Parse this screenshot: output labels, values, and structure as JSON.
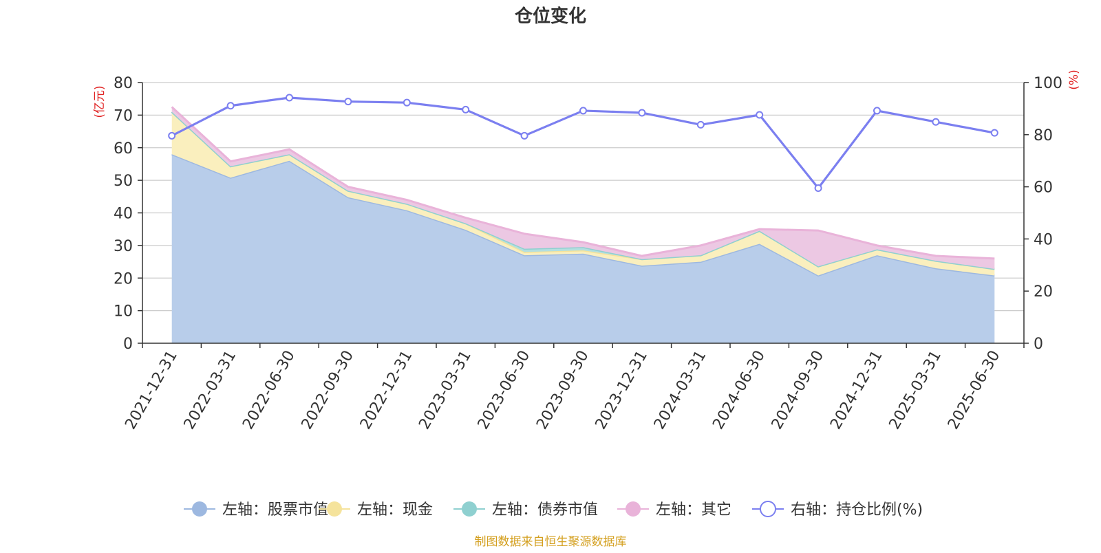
{
  "chart_data": {
    "type": "area",
    "title": "仓位变化",
    "left_axis_unit": "(亿元)",
    "right_axis_unit": "(%)",
    "left_ylim": [
      0,
      80
    ],
    "left_yticks": [
      0,
      10,
      20,
      30,
      40,
      50,
      60,
      70,
      80
    ],
    "right_ylim": [
      0,
      100
    ],
    "right_yticks": [
      0,
      20,
      40,
      60,
      80,
      100
    ],
    "grid": true,
    "legend_position": "bottom",
    "categories": [
      "2021-12-31",
      "2022-03-31",
      "2022-06-30",
      "2022-09-30",
      "2022-12-31",
      "2023-03-31",
      "2023-06-30",
      "2023-09-30",
      "2023-12-31",
      "2024-03-31",
      "2024-06-30",
      "2024-09-30",
      "2024-12-31",
      "2025-03-31",
      "2025-06-30"
    ],
    "stacked_series": [
      {
        "name": "左轴：股票市值",
        "axis": "left",
        "color": "#9db8e0",
        "fill": "#b8cdea",
        "values": [
          58.0,
          50.8,
          56.0,
          44.8,
          40.8,
          34.8,
          27.0,
          27.5,
          23.8,
          25.0,
          30.5,
          20.8,
          27.0,
          23.0,
          20.8
        ]
      },
      {
        "name": "左轴：现金",
        "axis": "left",
        "color": "#f5e39c",
        "fill": "#faefbe",
        "values": [
          13.0,
          3.5,
          2.0,
          2.0,
          2.0,
          2.0,
          1.0,
          1.0,
          2.0,
          2.0,
          4.0,
          2.8,
          1.8,
          2.3,
          2.0
        ]
      },
      {
        "name": "左轴：债券市值",
        "axis": "left",
        "color": "#8fd0d0",
        "fill": "#b3dfdf",
        "values": [
          0,
          0,
          0,
          0,
          0,
          0,
          1.0,
          1.0,
          0,
          0,
          0,
          0,
          0,
          0,
          0
        ]
      },
      {
        "name": "左轴：其它",
        "axis": "left",
        "color": "#e9b3d9",
        "fill": "#ecc8e3",
        "values": [
          1.5,
          1.5,
          1.5,
          1.2,
          1.2,
          1.7,
          4.6,
          1.5,
          1.0,
          3.0,
          0.5,
          11.0,
          1.2,
          1.5,
          3.2
        ]
      }
    ],
    "line_series": {
      "name": "右轴：持仓比例(%)",
      "axis": "right",
      "color": "#7b7ff0",
      "values": [
        79.6,
        91.1,
        94.2,
        92.7,
        92.3,
        89.6,
        79.6,
        89.2,
        88.4,
        83.8,
        87.6,
        59.5,
        89.2,
        84.9,
        80.7
      ]
    },
    "footer": "制图数据来自恒生聚源数据库"
  }
}
